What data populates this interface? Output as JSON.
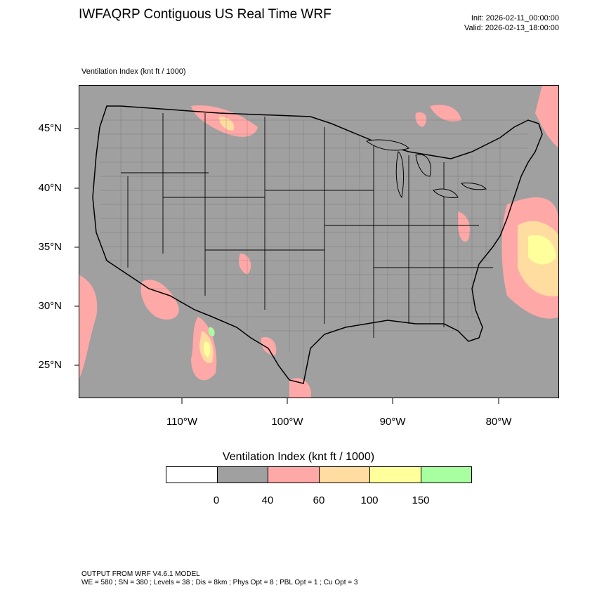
{
  "title": "IWFAQRP Contiguous US Real Time WRF",
  "init": "Init: 2026-02-11_00:00:00",
  "valid": "Valid: 2026-02-13_18:00:00",
  "field_label": "Ventilation Index   (knt ft / 1000)",
  "lat_labels": [
    "45°N",
    "40°N",
    "35°N",
    "30°N",
    "25°N"
  ],
  "lon_labels": [
    "110°W",
    "100°W",
    "90°W",
    "80°W"
  ],
  "legend": {
    "title": "Ventilation Index  (knt ft / 1000)",
    "colors": [
      "#ffffff",
      "#a0a0a0",
      "#ffa8a8",
      "#ffdca0",
      "#ffff9c",
      "#a8ffa0"
    ],
    "ticks": [
      "0",
      "40",
      "60",
      "100",
      "150"
    ]
  },
  "colors": {
    "background_field": "#a0a0a0",
    "low": "#ffa8a8",
    "moderate": "#ffdca0",
    "good": "#ffff9c",
    "excellent": "#a8ffa0"
  },
  "footer": {
    "line1": "OUTPUT FROM WRF V4.6.1 MODEL",
    "line2": "WE = 580 ; SN = 380 ; Levels = 38 ; Dis = 8km ; Phys Opt = 8 ; PBL Opt = 1 ; Cu Opt = 3"
  }
}
